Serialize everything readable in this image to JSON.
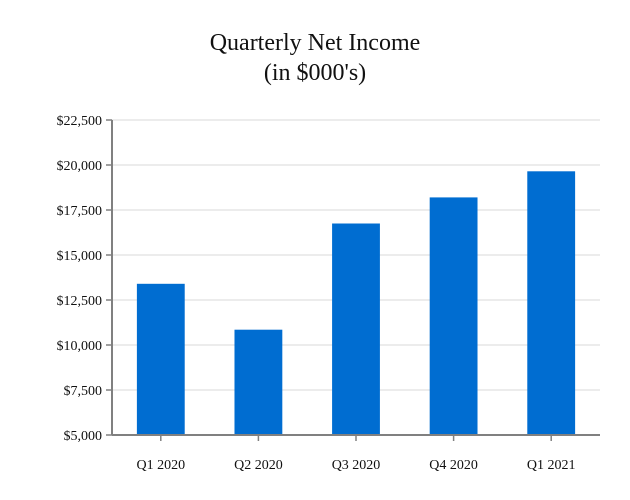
{
  "chart_data": {
    "type": "bar",
    "title": "Quarterly Net Income",
    "subtitle": "(in $000's)",
    "xlabel": "",
    "ylabel": "",
    "categories": [
      "Q1 2020",
      "Q2 2020",
      "Q3 2020",
      "Q4 2020",
      "Q1 2021"
    ],
    "values": [
      13400,
      10850,
      16750,
      18200,
      19650
    ],
    "ylim": [
      5000,
      22500
    ],
    "yticks": [
      5000,
      7500,
      10000,
      12500,
      15000,
      17500,
      20000,
      22500
    ],
    "ytick_labels": [
      "$5,000",
      "$7,500",
      "$10,000",
      "$12,500",
      "$15,000",
      "$17,500",
      "$20,000",
      "$22,500"
    ],
    "grid": true,
    "legend": "none",
    "colors": {
      "bar": "#006dd1",
      "grid": "#e6e6e6",
      "axis": "#808080",
      "text": "#111111"
    }
  }
}
